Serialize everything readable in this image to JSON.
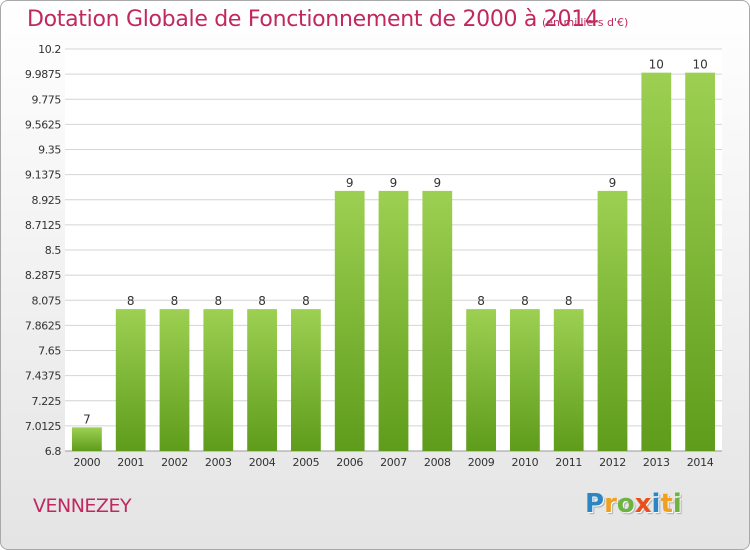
{
  "header": {
    "title": "Dotation Globale de Fonctionnement de 2000 à 2014",
    "unit_note": "(en milliers d'€)"
  },
  "footer": {
    "commune": "VENNEZEY",
    "logo_text": "Proxiti",
    "logo_letters": [
      {
        "char": "P",
        "color": "#2d86c4"
      },
      {
        "char": "r",
        "color": "#f0a020"
      },
      {
        "char": "o",
        "color": "#6cb33f"
      },
      {
        "char": "x",
        "color": "#e94e1b"
      },
      {
        "char": "i",
        "color": "#2d86c4"
      },
      {
        "char": "t",
        "color": "#f0a020"
      },
      {
        "char": "i",
        "color": "#6cb33f"
      }
    ]
  },
  "chart_data": {
    "type": "bar",
    "title": "Dotation Globale de Fonctionnement de 2000 à 2014",
    "subtitle": "(en milliers d'€)",
    "categories": [
      "2000",
      "2001",
      "2002",
      "2003",
      "2004",
      "2005",
      "2006",
      "2007",
      "2008",
      "2009",
      "2010",
      "2011",
      "2012",
      "2013",
      "2014"
    ],
    "values": [
      7,
      8,
      8,
      8,
      8,
      8,
      9,
      9,
      9,
      8,
      8,
      8,
      9,
      10,
      10
    ],
    "data_labels": [
      "7",
      "8",
      "8",
      "8",
      "8",
      "8",
      "9",
      "9",
      "9",
      "8",
      "8",
      "8",
      "9",
      "10",
      "10"
    ],
    "ylim": [
      6.8,
      10.2
    ],
    "yticks": [
      6.8,
      7.0125,
      7.225,
      7.4375,
      7.65,
      7.8625,
      8.075,
      8.2875,
      8.5,
      8.7125,
      8.925,
      9.1375,
      9.35,
      9.5625,
      9.775,
      9.9875,
      10.2
    ],
    "ytick_labels": [
      "6.8",
      "7.0125",
      "7.225",
      "7.4375",
      "7.65",
      "7.8625",
      "8.075",
      "8.2875",
      "8.5",
      "8.7125",
      "8.925",
      "9.1375",
      "9.35",
      "9.5625",
      "9.775",
      "9.9875",
      "10.2"
    ],
    "grid": true,
    "colors": {
      "bar_light": "#9dd052",
      "bar_dark": "#5f9c1b",
      "grid": "#d4d4d4",
      "axis_text": "#333333",
      "title": "#c0285f"
    }
  }
}
